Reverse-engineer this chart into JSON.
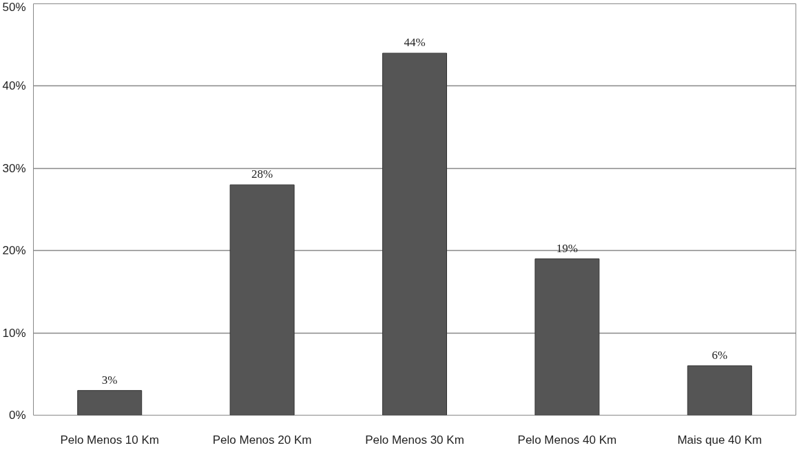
{
  "chart_data": {
    "type": "bar",
    "categories": [
      "Pelo Menos 10 Km",
      "Pelo Menos 20 Km",
      "Pelo Menos 30 Km",
      "Pelo Menos 40 Km",
      "Mais que 40 Km"
    ],
    "values": [
      3,
      28,
      44,
      19,
      6
    ],
    "color": "#555555",
    "ylim": [
      0,
      50
    ],
    "yticks": [
      {
        "value": 0,
        "label": "0%"
      },
      {
        "value": 10,
        "label": "10%"
      },
      {
        "value": 20,
        "label": "20%"
      },
      {
        "value": 30,
        "label": "30%"
      },
      {
        "value": 40,
        "label": "40%"
      },
      {
        "value": 50,
        "label": "50%"
      }
    ],
    "value_labels": [
      "3%",
      "28%",
      "44%",
      "19%",
      "6%"
    ],
    "grid": "y"
  }
}
